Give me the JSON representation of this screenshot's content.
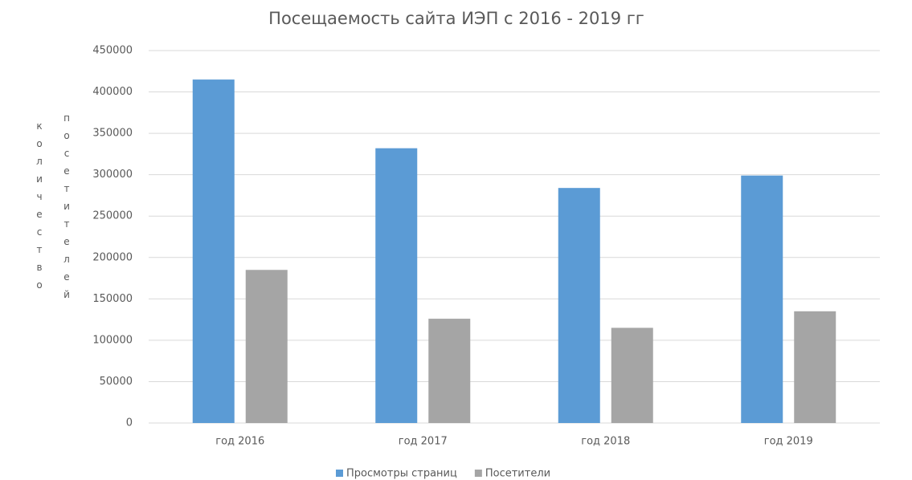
{
  "chart_data": {
    "type": "bar",
    "title": "Посещаемость сайта ИЭП с 2016 - 2019 гг",
    "y_label": [
      "количество",
      "посетителей"
    ],
    "categories": [
      "год 2016",
      "год 2017",
      "год 2018",
      "год 2019"
    ],
    "series": [
      {
        "name": "Просмотры страниц",
        "color": "#5b9bd5",
        "values": [
          415000,
          332000,
          284000,
          299000
        ]
      },
      {
        "name": "Посетители",
        "color": "#a5a5a5",
        "values": [
          185000,
          126000,
          115000,
          135000
        ]
      }
    ],
    "ylim": [
      0,
      450000
    ],
    "yticks": [
      0,
      50000,
      100000,
      150000,
      200000,
      250000,
      300000,
      350000,
      400000,
      450000
    ],
    "grid": true,
    "legend": "bottom"
  }
}
